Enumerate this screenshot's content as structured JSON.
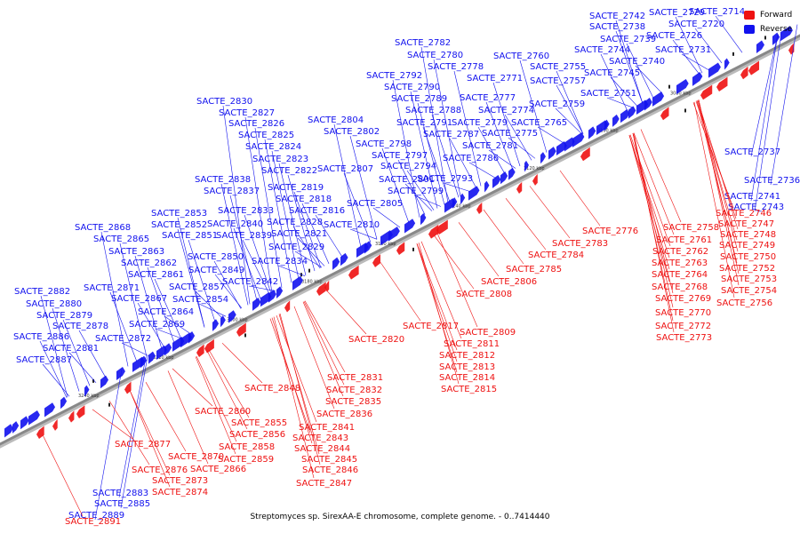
{
  "caption": "Streptomyces sp. SirexAA-E chromosome, complete genome. - 0..7414440",
  "legend": [
    {
      "label": "Forward",
      "color": "#ee1111"
    },
    {
      "label": "Reverse",
      "color": "#1111ee"
    }
  ],
  "colors": {
    "forward": "#ee1111",
    "reverse": "#1111ee",
    "axis": "#888888",
    "small": "#222222"
  },
  "ticks": [
    "3080 kbp",
    "3100 kbp",
    "3120 kbp",
    "3140 kbp",
    "3160 kbp",
    "3180 kbp",
    "3200 kbp",
    "3220 kbp",
    "3240 kbp"
  ],
  "reverse_genes": [
    "SACTE_2714",
    "SACTE_2729",
    "SACTE_2742",
    "SACTE_2720",
    "SACTE_2738",
    "SACTE_2726",
    "SACTE_2739",
    "SACTE_2744",
    "SACTE_2731",
    "SACTE_2740",
    "SACTE_2760",
    "SACTE_2745",
    "SACTE_2755",
    "SACTE_2782",
    "SACTE_2780",
    "SACTE_2778",
    "SACTE_2757",
    "SACTE_2751",
    "SACTE_2771",
    "SACTE_2792",
    "SACTE_2790",
    "SACTE_2777",
    "SACTE_2759",
    "SACTE_2789",
    "SACTE_2788",
    "SACTE_2774",
    "SACTE_2765",
    "SACTE_2779",
    "SACTE_2791",
    "SACTE_2775",
    "SACTE_2830",
    "SACTE_2804",
    "SACTE_2787",
    "SACTE_2827",
    "SACTE_2802",
    "SACTE_2781",
    "SACTE_2826",
    "SACTE_2798",
    "SACTE_2786",
    "SACTE_2825",
    "SACTE_2797",
    "SACTE_2824",
    "SACTE_2794",
    "SACTE_2793",
    "SACTE_2823",
    "SACTE_2807",
    "SACTE_2822",
    "SACTE_2801",
    "SACTE_2838",
    "SACTE_2819",
    "SACTE_2799",
    "SACTE_2837",
    "SACTE_2818",
    "SACTE_2805",
    "SACTE_2833",
    "SACTE_2816",
    "SACTE_2853",
    "SACTE_2828",
    "SACTE_2810",
    "SACTE_2840",
    "SACTE_2852",
    "SACTE_2868",
    "SACTE_2821",
    "SACTE_2839",
    "SACTE_2851",
    "SACTE_2865",
    "SACTE_2829",
    "SACTE_2863",
    "SACTE_2850",
    "SACTE_2834",
    "SACTE_2862",
    "SACTE_2849",
    "SACTE_2861",
    "SACTE_2842",
    "SACTE_2871",
    "SACTE_2857",
    "SACTE_2882",
    "SACTE_2867",
    "SACTE_2854",
    "SACTE_2880",
    "SACTE_2864",
    "SACTE_2879",
    "SACTE_2869",
    "SACTE_2878",
    "SACTE_2886",
    "SACTE_2872",
    "SACTE_2881",
    "SACTE_2887",
    "SACTE_2737",
    "SACTE_2736",
    "SACTE_2741",
    "SACTE_2743",
    "SACTE_2883",
    "SACTE_2885",
    "SACTE_2889"
  ],
  "forward_genes": [
    "SACTE_2746",
    "SACTE_2747",
    "SACTE_2758",
    "SACTE_2748",
    "SACTE_2761",
    "SACTE_2749",
    "SACTE_2762",
    "SACTE_2750",
    "SACTE_2763",
    "SACTE_2752",
    "SACTE_2764",
    "SACTE_2753",
    "SACTE_2768",
    "SACTE_2754",
    "SACTE_2769",
    "SACTE_2756",
    "SACTE_2770",
    "SACTE_2772",
    "SACTE_2773",
    "SACTE_2776",
    "SACTE_2783",
    "SACTE_2784",
    "SACTE_2785",
    "SACTE_2806",
    "SACTE_2808",
    "SACTE_2817",
    "SACTE_2809",
    "SACTE_2811",
    "SACTE_2812",
    "SACTE_2813",
    "SACTE_2814",
    "SACTE_2815",
    "SACTE_2820",
    "SACTE_2831",
    "SACTE_2848",
    "SACTE_2832",
    "SACTE_2835",
    "SACTE_2836",
    "SACTE_2860",
    "SACTE_2841",
    "SACTE_2855",
    "SACTE_2843",
    "SACTE_2856",
    "SACTE_2844",
    "SACTE_2858",
    "SACTE_2845",
    "SACTE_2859",
    "SACTE_2846",
    "SACTE_2877",
    "SACTE_2870",
    "SACTE_2866",
    "SACTE_2847",
    "SACTE_2876",
    "SACTE_2873",
    "SACTE_2874",
    "SACTE_2891"
  ]
}
